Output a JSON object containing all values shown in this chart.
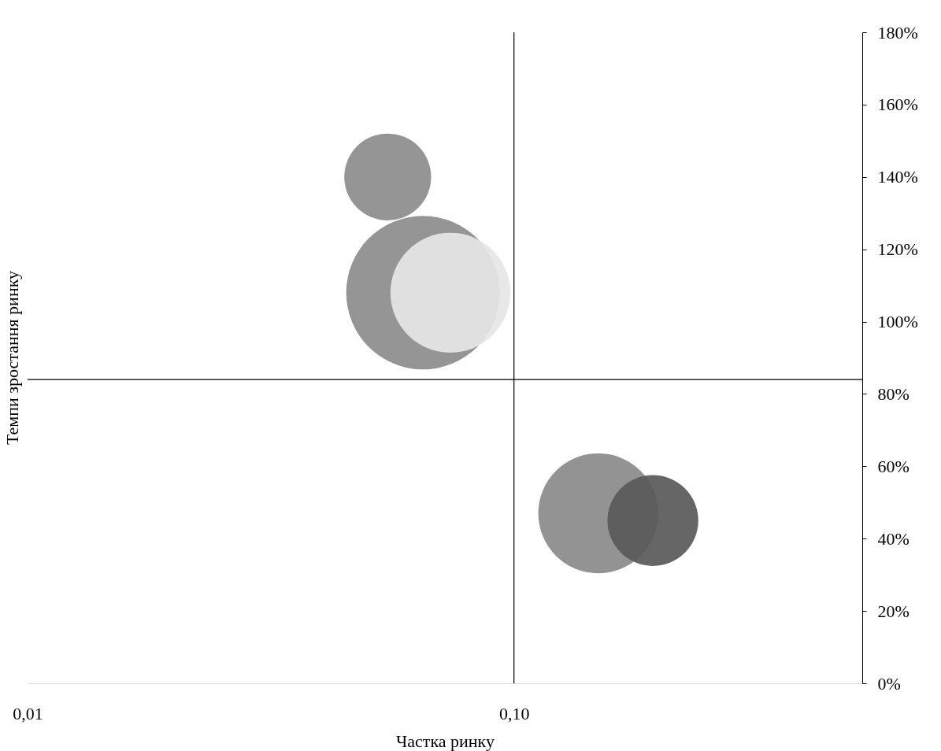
{
  "chart_data": {
    "type": "bubble",
    "xlabel": "Частка ринку",
    "ylabel": "Темпи зростання ринку",
    "log": "x",
    "xlim": [
      0.01,
      0.52
    ],
    "xticks": [
      {
        "value": 0.01,
        "label": "0,01"
      },
      {
        "value": 0.1,
        "label": "0,10"
      }
    ],
    "ylim": [
      0,
      180
    ],
    "yticks": [
      {
        "value": 0,
        "label": "0%"
      },
      {
        "value": 20,
        "label": "20%"
      },
      {
        "value": 40,
        "label": "40%"
      },
      {
        "value": 60,
        "label": "60%"
      },
      {
        "value": 80,
        "label": "80%"
      },
      {
        "value": 100,
        "label": "100%"
      },
      {
        "value": 120,
        "label": "120%"
      },
      {
        "value": 140,
        "label": "140%"
      },
      {
        "value": 160,
        "label": "160%"
      },
      {
        "value": 180,
        "label": "180%"
      }
    ],
    "x": [
      0.055,
      0.065,
      0.074,
      0.149,
      0.193
    ],
    "values": [
      140,
      108,
      108,
      47,
      45
    ],
    "sizes": [
      0.32,
      1,
      0.61,
      0.61,
      0.35
    ],
    "colors": [
      "#8c8c8c",
      "#8c8c8c",
      "#e6e6e6",
      "#8a8a8a",
      "#595959"
    ],
    "ref_lines": [
      {
        "axis": "x",
        "value": 0.1,
        "color": "#000000"
      },
      {
        "axis": "y",
        "value": 84,
        "color": "#000000"
      }
    ],
    "grid": false
  }
}
